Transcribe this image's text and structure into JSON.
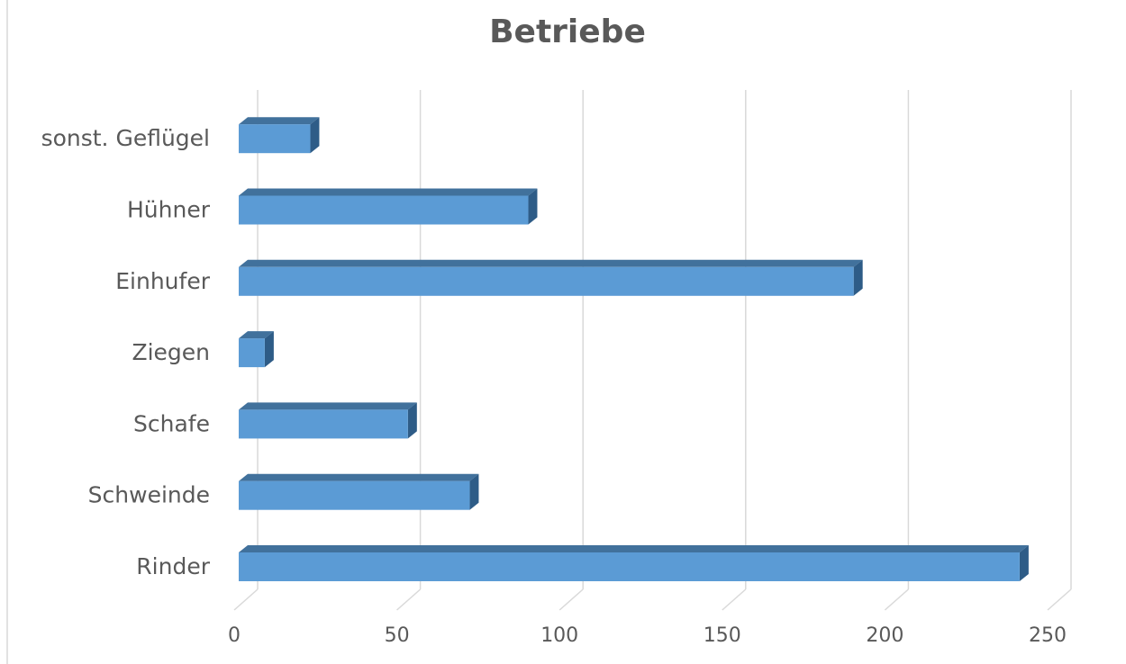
{
  "chart_data": {
    "type": "bar3d_horizontal",
    "title": "Betriebe",
    "categories": [
      "Rinder",
      "Schweinde",
      "Schafe",
      "Ziegen",
      "Einhufer",
      "Hühner",
      "sonst. Geflügel"
    ],
    "values": [
      240,
      71,
      52,
      8,
      189,
      89,
      22
    ],
    "color": "#5b9bd5",
    "xlim": [
      0,
      250
    ],
    "xticks": [
      0,
      50,
      100,
      150,
      200,
      250
    ],
    "grid": true
  }
}
